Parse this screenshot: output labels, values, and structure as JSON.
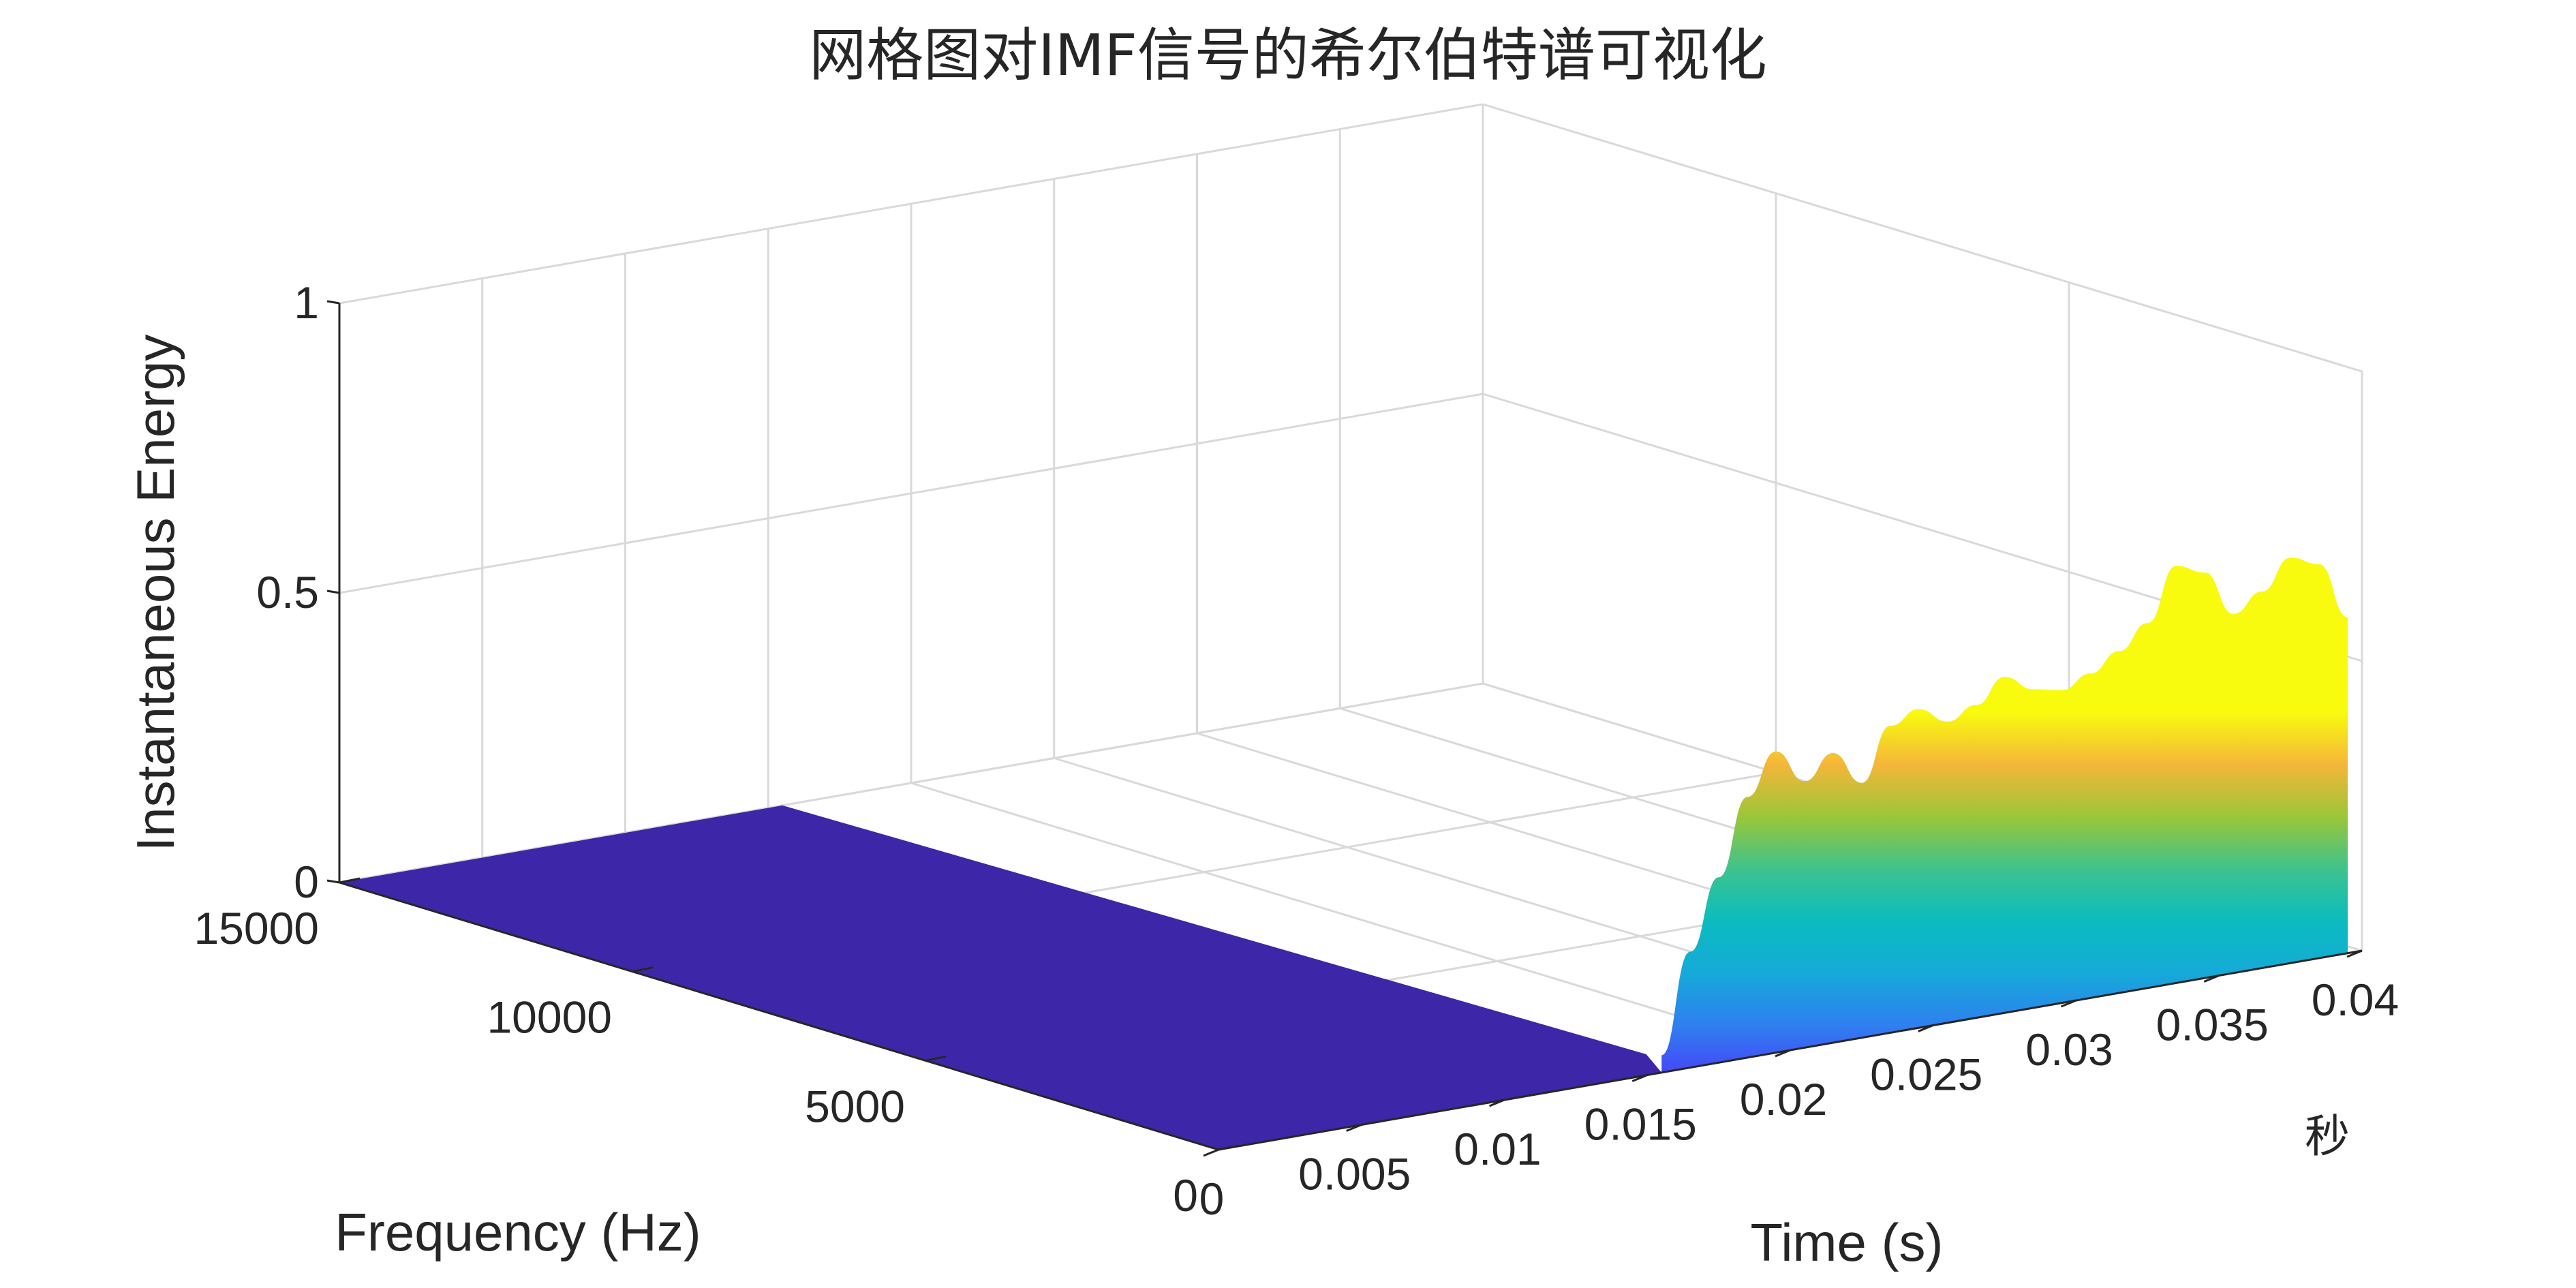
{
  "chart_data": {
    "type": "surface",
    "title": "网格图对IMF信号的希尔伯特谱可视化",
    "xlabel": "Time (s)",
    "ylabel": "Frequency (Hz)",
    "zlabel": "Instantaneous Energy",
    "x_unit_label": "秒",
    "xlim": [
      0,
      0.04
    ],
    "ylim": [
      0,
      15000
    ],
    "zlim": [
      0,
      1
    ],
    "x_ticks": [
      {
        "value": 0,
        "label": "0"
      },
      {
        "value": 0.005,
        "label": "0.005"
      },
      {
        "value": 0.01,
        "label": "0.01"
      },
      {
        "value": 0.015,
        "label": "0.015"
      },
      {
        "value": 0.02,
        "label": "0.02"
      },
      {
        "value": 0.025,
        "label": "0.025"
      },
      {
        "value": 0.03,
        "label": "0.03"
      },
      {
        "value": 0.035,
        "label": "0.035"
      },
      {
        "value": 0.04,
        "label": "0.04"
      }
    ],
    "y_ticks": [
      {
        "value": 0,
        "label": "0"
      },
      {
        "value": 5000,
        "label": "5000"
      },
      {
        "value": 10000,
        "label": "10000"
      },
      {
        "value": 15000,
        "label": "15000"
      }
    ],
    "z_ticks": [
      {
        "value": 0,
        "label": "0"
      },
      {
        "value": 0.5,
        "label": "0.5"
      },
      {
        "value": 1,
        "label": "1"
      }
    ],
    "colormap": [
      "#3e26a8",
      "#4743f8",
      "#2f80f0",
      "#15aad8",
      "#0bbcbe",
      "#3ec38c",
      "#9bc638",
      "#f5b639",
      "#f9fb0e"
    ],
    "ridge_frequency_range": [
      0,
      800
    ],
    "energy_along_time": {
      "x": [
        0.0155,
        0.0165,
        0.0175,
        0.0185,
        0.0195,
        0.0205,
        0.0215,
        0.0225,
        0.0235,
        0.0245,
        0.0255,
        0.0265,
        0.0275,
        0.0285,
        0.0295,
        0.0305,
        0.0315,
        0.0325,
        0.0335,
        0.0345,
        0.0355,
        0.0365,
        0.0375,
        0.0385,
        0.0395
      ],
      "z": [
        0.03,
        0.2,
        0.32,
        0.45,
        0.52,
        0.46,
        0.5,
        0.44,
        0.53,
        0.55,
        0.52,
        0.54,
        0.58,
        0.55,
        0.54,
        0.56,
        0.59,
        0.63,
        0.72,
        0.7,
        0.62,
        0.65,
        0.7,
        0.68,
        0.58
      ]
    }
  }
}
